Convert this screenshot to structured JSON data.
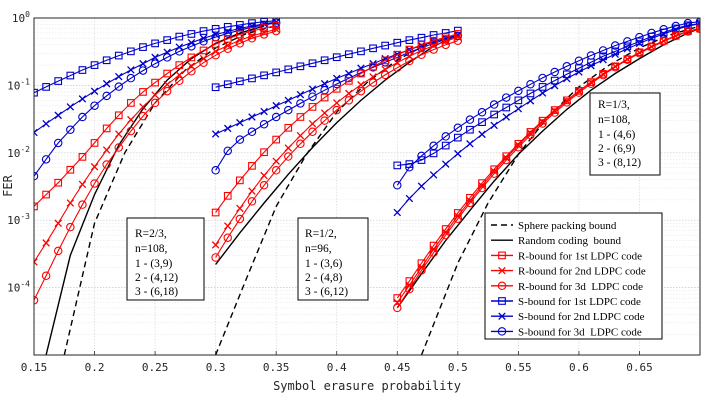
{
  "chart_data": {
    "type": "line",
    "xlabel": "Symbol erasure probability",
    "ylabel": "FER",
    "xlim": [
      0.15,
      0.7
    ],
    "ylim_log10": [
      -5,
      0
    ],
    "x_ticks": [
      "0.15",
      "0.2",
      "0.25",
      "0.3",
      "0.35",
      "0.4",
      "0.45",
      "0.5",
      "0.55",
      "0.6",
      "0.65"
    ],
    "y_ticks": [
      "10^{-4}",
      "10^{-3}",
      "10^{-2}",
      "10^{-1}",
      "10^{0}"
    ],
    "grid": true,
    "log_y": true,
    "legend_position": "lower-right",
    "legend": [
      "Sphere packing bound",
      "Random coding  bound",
      "R-bound for 1st LDPC code",
      "R-bound for 2nd LDPC code",
      "R-bound for 3d  LDPC code",
      "S-bound for 1st LDPC code",
      "S-bound for 2nd LDPC code",
      "S-bound for 3d  LDPC code"
    ],
    "annotations": [
      [
        "R=2/3,",
        "n=108,",
        "1 - (3,9)",
        "2 - (4,12)",
        "3 - (6,18)"
      ],
      [
        "R=1/2,",
        "n=96,",
        "1 - (3,6)",
        "2 - (4,8)",
        "3 - (6,12)"
      ],
      [
        "R=1/3,",
        "n=108,",
        "1 - (4,6)",
        "2 - (6,9)",
        "3 - (8,12)"
      ]
    ],
    "colors": {
      "sphere": "#000000",
      "random": "#000000",
      "r_bound": "#ff0000",
      "s_bound": "#0000cc"
    },
    "groups": [
      {
        "rate": "2/3",
        "x": [
          0.15,
          0.16,
          0.17,
          0.18,
          0.19,
          0.2,
          0.21,
          0.22,
          0.23,
          0.24,
          0.25,
          0.26,
          0.27,
          0.28,
          0.29,
          0.3,
          0.31,
          0.32,
          0.33,
          0.34,
          0.35
        ],
        "sphere": {
          "x": [
            0.175,
            0.2,
            0.225,
            0.25,
            0.275,
            0.3,
            0.325,
            0.35
          ],
          "fer": [
            1e-05,
            0.0009,
            0.01,
            0.055,
            0.17,
            0.36,
            0.58,
            0.77
          ]
        },
        "random": {
          "x": [
            0.16,
            0.18,
            0.2,
            0.22,
            0.24,
            0.26,
            0.28,
            0.3,
            0.32,
            0.34
          ],
          "fer": [
            1e-05,
            0.0003,
            0.0024,
            0.013,
            0.045,
            0.12,
            0.25,
            0.42,
            0.6,
            0.76
          ]
        },
        "r1": [
          0.0016,
          0.0024,
          0.0036,
          0.0056,
          0.0087,
          0.014,
          0.023,
          0.036,
          0.055,
          0.08,
          0.11,
          0.15,
          0.2,
          0.26,
          0.33,
          0.41,
          0.49,
          0.57,
          0.64,
          0.71,
          0.77
        ],
        "r2": [
          0.00024,
          0.00046,
          0.0009,
          0.0018,
          0.0034,
          0.0062,
          0.011,
          0.019,
          0.031,
          0.048,
          0.072,
          0.103,
          0.143,
          0.193,
          0.25,
          0.32,
          0.39,
          0.47,
          0.54,
          0.61,
          0.68
        ],
        "r3": [
          6.5e-05,
          0.00015,
          0.00035,
          0.00079,
          0.0017,
          0.0035,
          0.0067,
          0.012,
          0.021,
          0.035,
          0.055,
          0.082,
          0.117,
          0.162,
          0.217,
          0.28,
          0.35,
          0.42,
          0.5,
          0.57,
          0.64
        ],
        "s1": [
          0.078,
          0.095,
          0.116,
          0.14,
          0.169,
          0.2,
          0.236,
          0.277,
          0.32,
          0.37,
          0.42,
          0.47,
          0.53,
          0.58,
          0.64,
          0.69,
          0.74,
          0.79,
          0.84,
          0.88,
          0.91
        ],
        "s2": [
          0.02,
          0.027,
          0.036,
          0.048,
          0.063,
          0.082,
          0.106,
          0.135,
          0.17,
          0.21,
          0.26,
          0.31,
          0.37,
          0.43,
          0.5,
          0.57,
          0.63,
          0.7,
          0.76,
          0.82,
          0.87
        ],
        "s3": [
          0.0045,
          0.008,
          0.014,
          0.022,
          0.034,
          0.05,
          0.07,
          0.096,
          0.128,
          0.166,
          0.21,
          0.26,
          0.32,
          0.38,
          0.45,
          0.52,
          0.59,
          0.66,
          0.73,
          0.79,
          0.85
        ]
      },
      {
        "rate": "1/2",
        "x": [
          0.3,
          0.31,
          0.32,
          0.33,
          0.34,
          0.35,
          0.36,
          0.37,
          0.38,
          0.39,
          0.4,
          0.41,
          0.42,
          0.43,
          0.44,
          0.45,
          0.46,
          0.47,
          0.48,
          0.49,
          0.5
        ],
        "sphere": {
          "x": [
            0.3,
            0.325,
            0.35,
            0.375,
            0.4,
            0.425,
            0.45,
            0.475,
            0.5
          ],
          "fer": [
            1e-05,
            0.00013,
            0.0016,
            0.0095,
            0.04,
            0.11,
            0.24,
            0.41,
            0.55
          ]
        },
        "random": {
          "x": [
            0.3,
            0.32,
            0.34,
            0.36,
            0.38,
            0.4,
            0.42,
            0.44,
            0.46,
            0.48,
            0.5
          ],
          "fer": [
            0.00022,
            0.00065,
            0.0018,
            0.0048,
            0.012,
            0.028,
            0.06,
            0.12,
            0.22,
            0.38,
            0.56
          ]
        },
        "r1": [
          0.0013,
          0.0023,
          0.0039,
          0.0064,
          0.0102,
          0.0157,
          0.0235,
          0.034,
          0.048,
          0.066,
          0.089,
          0.117,
          0.15,
          0.19,
          0.235,
          0.285,
          0.34,
          0.4,
          0.46,
          0.52,
          0.58
        ],
        "r2": [
          0.00043,
          0.00082,
          0.0015,
          0.0027,
          0.0046,
          0.0075,
          0.0118,
          0.018,
          0.027,
          0.039,
          0.055,
          0.076,
          0.102,
          0.134,
          0.172,
          0.218,
          0.27,
          0.33,
          0.39,
          0.45,
          0.52
        ],
        "r3": [
          0.00028,
          0.00055,
          0.00104,
          0.0019,
          0.0033,
          0.0055,
          0.0088,
          0.0136,
          0.0205,
          0.03,
          0.043,
          0.06,
          0.082,
          0.11,
          0.143,
          0.183,
          0.23,
          0.285,
          0.34,
          0.4,
          0.46
        ],
        "s1": [
          0.094,
          0.104,
          0.115,
          0.127,
          0.141,
          0.156,
          0.173,
          0.192,
          0.213,
          0.236,
          0.262,
          0.29,
          0.32,
          0.355,
          0.39,
          0.43,
          0.47,
          0.51,
          0.56,
          0.6,
          0.65
        ],
        "s2": [
          0.019,
          0.023,
          0.028,
          0.034,
          0.041,
          0.05,
          0.06,
          0.073,
          0.088,
          0.106,
          0.127,
          0.15,
          0.18,
          0.21,
          0.25,
          0.29,
          0.34,
          0.39,
          0.44,
          0.5,
          0.56
        ],
        "s3": [
          0.0055,
          0.0107,
          0.0157,
          0.0205,
          0.0265,
          0.034,
          0.043,
          0.054,
          0.068,
          0.085,
          0.105,
          0.128,
          0.155,
          0.185,
          0.22,
          0.26,
          0.31,
          0.36,
          0.42,
          0.48,
          0.54
        ]
      },
      {
        "rate": "1/3",
        "x": [
          0.45,
          0.46,
          0.47,
          0.48,
          0.49,
          0.5,
          0.51,
          0.52,
          0.53,
          0.54,
          0.55,
          0.56,
          0.57,
          0.58,
          0.59,
          0.6,
          0.61,
          0.62,
          0.63,
          0.64,
          0.65,
          0.66,
          0.67,
          0.68,
          0.69,
          0.7
        ],
        "sphere": {
          "x": [
            0.47,
            0.5,
            0.525,
            0.55,
            0.575,
            0.6,
            0.625,
            0.65,
            0.675,
            0.7
          ],
          "fer": [
            1e-05,
            0.00023,
            0.0018,
            0.0095,
            0.035,
            0.095,
            0.2,
            0.36,
            0.56,
            0.76
          ]
        },
        "random": {
          "x": [
            0.45,
            0.47,
            0.49,
            0.51,
            0.53,
            0.55,
            0.57,
            0.59,
            0.61,
            0.63,
            0.65,
            0.67,
            0.69,
            0.7
          ],
          "fer": [
            5e-05,
            0.00016,
            0.0005,
            0.0014,
            0.0038,
            0.0095,
            0.021,
            0.044,
            0.085,
            0.15,
            0.25,
            0.4,
            0.6,
            0.7
          ]
        },
        "r1": [
          7e-05,
          0.000125,
          0.00023,
          0.00042,
          0.00074,
          0.00128,
          0.00215,
          0.00355,
          0.0057,
          0.0089,
          0.0136,
          0.0204,
          0.03,
          0.043,
          0.06,
          0.083,
          0.112,
          0.148,
          0.192,
          0.245,
          0.31,
          0.38,
          0.46,
          0.55,
          0.64,
          0.7
        ],
        "r2": [
          6e-05,
          0.000108,
          0.0002,
          0.00037,
          0.00066,
          0.00115,
          0.00195,
          0.00325,
          0.0053,
          0.0084,
          0.013,
          0.0196,
          0.029,
          0.042,
          0.059,
          0.082,
          0.111,
          0.147,
          0.191,
          0.244,
          0.305,
          0.375,
          0.455,
          0.54,
          0.63,
          0.69
        ],
        "r3": [
          5e-05,
          9.5e-05,
          0.00018,
          0.00033,
          0.0006,
          0.00105,
          0.0018,
          0.003,
          0.0049,
          0.0078,
          0.0121,
          0.0184,
          0.0272,
          0.0395,
          0.056,
          0.078,
          0.106,
          0.142,
          0.186,
          0.24,
          0.3,
          0.37,
          0.45,
          0.54,
          0.63,
          0.69
        ],
        "s1": [
          0.0065,
          0.0068,
          0.0078,
          0.0098,
          0.0128,
          0.0168,
          0.022,
          0.0285,
          0.037,
          0.047,
          0.06,
          0.076,
          0.095,
          0.118,
          0.146,
          0.18,
          0.22,
          0.27,
          0.32,
          0.38,
          0.45,
          0.53,
          0.61,
          0.7,
          0.78,
          0.83
        ],
        "s2": [
          0.0013,
          0.0021,
          0.0032,
          0.0047,
          0.0068,
          0.0097,
          0.0136,
          0.0188,
          0.0255,
          0.034,
          0.045,
          0.059,
          0.077,
          0.099,
          0.126,
          0.158,
          0.196,
          0.24,
          0.29,
          0.35,
          0.42,
          0.5,
          0.58,
          0.67,
          0.76,
          0.82
        ],
        "s3": [
          0.0033,
          0.0061,
          0.009,
          0.0127,
          0.0175,
          0.0235,
          0.031,
          0.04,
          0.052,
          0.066,
          0.083,
          0.104,
          0.129,
          0.158,
          0.192,
          0.232,
          0.278,
          0.33,
          0.39,
          0.45,
          0.52,
          0.6,
          0.68,
          0.76,
          0.84,
          0.88
        ]
      }
    ]
  }
}
